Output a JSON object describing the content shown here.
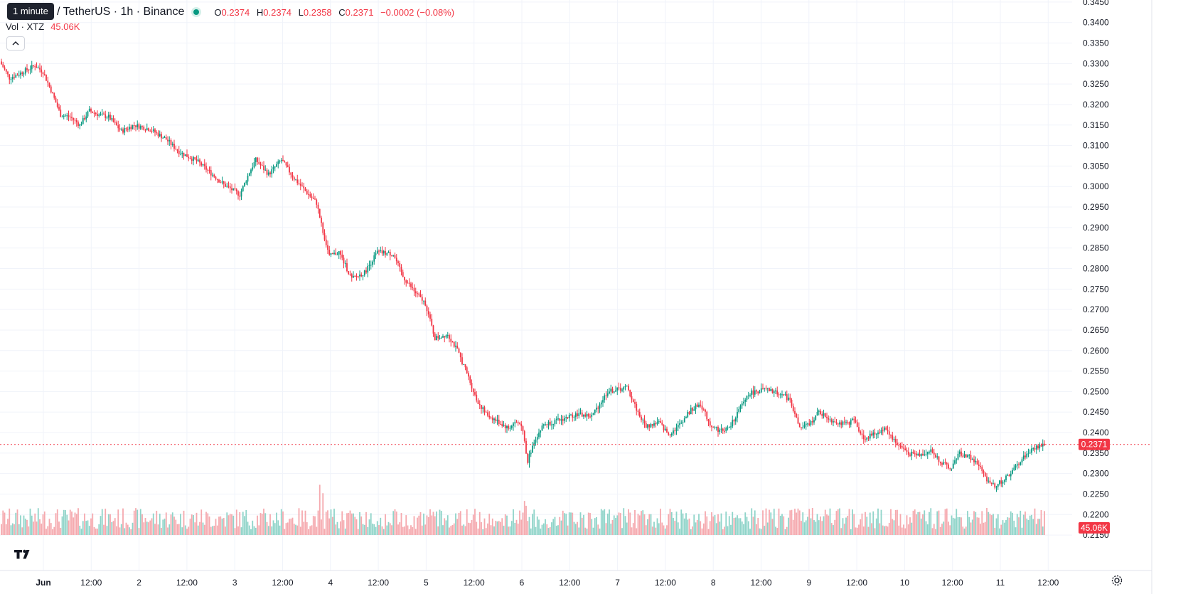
{
  "header": {
    "interval_tooltip": "1 minute",
    "symbol_title": "/ TetherUS · 1h · Binance",
    "ohlc": {
      "o_label": "O",
      "o_value": "0.2374",
      "h_label": "H",
      "h_value": "0.2374",
      "l_label": "L",
      "l_value": "0.2358",
      "c_label": "C",
      "c_value": "0.2371",
      "change": "−0.0002 (−0.08%)"
    }
  },
  "volume_legend": {
    "label": "Vol · XTZ",
    "value": "45.06K"
  },
  "icons": {
    "collapse": "chevron-up-icon",
    "logo": "tradingview-logo",
    "settings": "gear-icon"
  },
  "colors": {
    "up": "#089981",
    "down": "#f23645",
    "up_volume": "#8fd4c9",
    "down_volume": "#f5a9ae",
    "grid": "#f0f3fa"
  },
  "chart_data": {
    "type": "candlestick",
    "interval": "1h",
    "y_axis_ticks": [
      "0.3450",
      "0.3400",
      "0.3350",
      "0.3300",
      "0.3250",
      "0.3200",
      "0.3150",
      "0.3100",
      "0.3050",
      "0.3000",
      "0.2950",
      "0.2900",
      "0.2850",
      "0.2800",
      "0.2750",
      "0.2700",
      "0.2650",
      "0.2600",
      "0.2550",
      "0.2500",
      "0.2450",
      "0.2400",
      "0.2350",
      "0.2300",
      "0.2250",
      "0.2200",
      "0.2150"
    ],
    "ylim": [
      0.2145,
      0.3455
    ],
    "x_axis_ticks": [
      "Jun",
      "12:00",
      "2",
      "12:00",
      "3",
      "12:00",
      "4",
      "12:00",
      "5",
      "12:00",
      "6",
      "12:00",
      "7",
      "12:00",
      "8",
      "12:00",
      "9",
      "12:00",
      "10",
      "12:00",
      "11",
      "12:00"
    ],
    "last_price": "0.2371",
    "last_volume": "45.06K",
    "price_path": [
      [
        0,
        0.3305
      ],
      [
        6,
        0.3265
      ],
      [
        12,
        0.3275
      ],
      [
        22,
        0.3295
      ],
      [
        27,
        0.328
      ],
      [
        32,
        0.3235
      ],
      [
        38,
        0.3175
      ],
      [
        44,
        0.317
      ],
      [
        50,
        0.315
      ],
      [
        56,
        0.3185
      ],
      [
        62,
        0.3175
      ],
      [
        68,
        0.317
      ],
      [
        76,
        0.3135
      ],
      [
        84,
        0.315
      ],
      [
        94,
        0.314
      ],
      [
        104,
        0.3115
      ],
      [
        112,
        0.3085
      ],
      [
        124,
        0.306
      ],
      [
        140,
        0.3005
      ],
      [
        150,
        0.298
      ],
      [
        156,
        0.3035
      ],
      [
        160,
        0.3065
      ],
      [
        168,
        0.303
      ],
      [
        176,
        0.3065
      ],
      [
        184,
        0.302
      ],
      [
        192,
        0.2985
      ],
      [
        198,
        0.296
      ],
      [
        202,
        0.289
      ],
      [
        206,
        0.283
      ],
      [
        212,
        0.284
      ],
      [
        220,
        0.2775
      ],
      [
        228,
        0.279
      ],
      [
        236,
        0.284
      ],
      [
        246,
        0.2835
      ],
      [
        252,
        0.278
      ],
      [
        260,
        0.274
      ],
      [
        266,
        0.2715
      ],
      [
        272,
        0.263
      ],
      [
        280,
        0.264
      ],
      [
        286,
        0.26
      ],
      [
        292,
        0.2545
      ],
      [
        298,
        0.248
      ],
      [
        304,
        0.2445
      ],
      [
        310,
        0.243
      ],
      [
        318,
        0.241
      ],
      [
        322,
        0.2425
      ],
      [
        326,
        0.242
      ],
      [
        330,
        0.233
      ],
      [
        334,
        0.238
      ],
      [
        340,
        0.242
      ],
      [
        350,
        0.243
      ],
      [
        360,
        0.2445
      ],
      [
        370,
        0.244
      ],
      [
        380,
        0.25
      ],
      [
        392,
        0.251
      ],
      [
        400,
        0.244
      ],
      [
        404,
        0.2415
      ],
      [
        412,
        0.2425
      ],
      [
        418,
        0.2395
      ],
      [
        424,
        0.2415
      ],
      [
        432,
        0.2455
      ],
      [
        438,
        0.247
      ],
      [
        444,
        0.242
      ],
      [
        450,
        0.2405
      ],
      [
        456,
        0.241
      ],
      [
        460,
        0.244
      ],
      [
        468,
        0.2495
      ],
      [
        478,
        0.2505
      ],
      [
        488,
        0.2495
      ],
      [
        494,
        0.248
      ],
      [
        500,
        0.241
      ],
      [
        506,
        0.242
      ],
      [
        512,
        0.245
      ],
      [
        520,
        0.243
      ],
      [
        528,
        0.242
      ],
      [
        534,
        0.243
      ],
      [
        540,
        0.2385
      ],
      [
        546,
        0.2395
      ],
      [
        554,
        0.241
      ],
      [
        560,
        0.2375
      ],
      [
        568,
        0.235
      ],
      [
        574,
        0.2345
      ],
      [
        582,
        0.2355
      ],
      [
        588,
        0.233
      ],
      [
        594,
        0.231
      ],
      [
        600,
        0.235
      ],
      [
        606,
        0.234
      ],
      [
        612,
        0.232
      ],
      [
        616,
        0.229
      ],
      [
        622,
        0.227
      ],
      [
        628,
        0.2285
      ],
      [
        634,
        0.231
      ],
      [
        640,
        0.234
      ],
      [
        646,
        0.236
      ],
      [
        652,
        0.2371
      ]
    ]
  }
}
